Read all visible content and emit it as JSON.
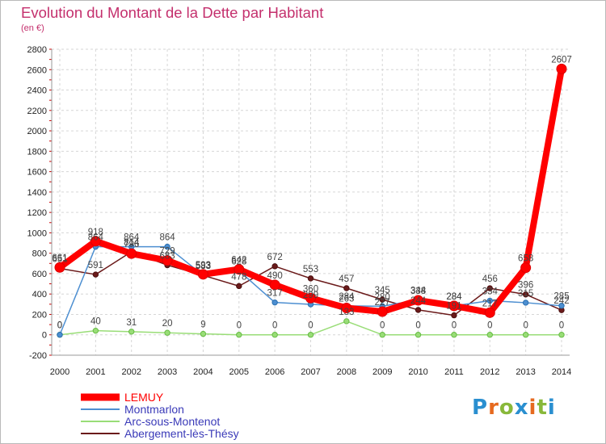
{
  "title": "Evolution du Montant de la Dette par Habitant",
  "subtitle": "(en €)",
  "logo": {
    "letters": [
      "P",
      "r",
      "o",
      "x",
      "i",
      "t",
      "i"
    ],
    "colors": [
      "#2a8fd0",
      "#e66a1f",
      "#88b83a",
      "#2a8fd0",
      "#e66a1f",
      "#88b83a",
      "#2a8fd0"
    ]
  },
  "chart_data": {
    "type": "line",
    "x": [
      2000,
      2001,
      2002,
      2003,
      2004,
      2005,
      2006,
      2007,
      2008,
      2009,
      2010,
      2011,
      2012,
      2013,
      2014
    ],
    "ylim": [
      -200,
      2800
    ],
    "yticks": [
      -200,
      0,
      200,
      400,
      600,
      800,
      1000,
      1200,
      1400,
      1600,
      1800,
      2000,
      2200,
      2400,
      2600,
      2800
    ],
    "grid": true,
    "legend": "bottom-left",
    "series": [
      {
        "name": "Abergement-lès-Thésy",
        "color": "#6b1a1a",
        "values": [
          651,
          591,
          814,
          683,
          583,
          478,
          672,
          553,
          457,
          345,
          244,
          191,
          456,
          396,
          242
        ]
      },
      {
        "name": "Arc-sous-Montenot",
        "color": "#99dd77",
        "values": [
          0,
          40,
          31,
          20,
          9,
          0,
          0,
          0,
          133,
          0,
          0,
          0,
          0,
          0,
          0
        ]
      },
      {
        "name": "Montmarlon",
        "color": "#4d8fd1",
        "values": [
          0,
          864,
          864,
          864,
          583,
          628,
          317,
          299,
          284,
          280,
          344,
          284,
          334,
          315,
          285
        ]
      },
      {
        "name": "LEMUY",
        "color": "#ff0000",
        "values": [
          661,
          918,
          796,
          729,
          593,
          642,
          490,
          360,
          263,
          227,
          338,
          284,
          217,
          658,
          2607
        ]
      }
    ]
  }
}
